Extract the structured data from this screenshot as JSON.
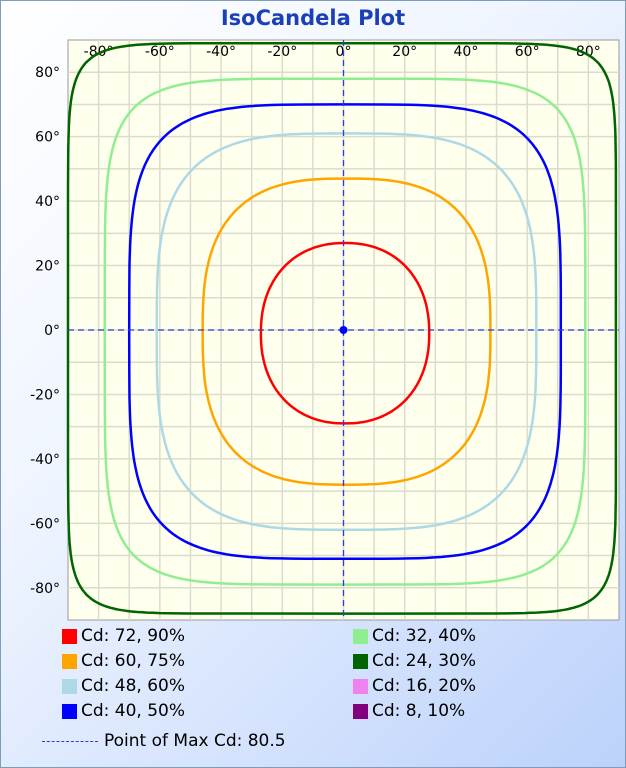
{
  "chart_data": {
    "type": "contour",
    "title": "IsoCandela Plot",
    "x_ticks": [
      "-80°",
      "-60°",
      "-40°",
      "-20°",
      "0°",
      "20°",
      "40°",
      "60°",
      "80°"
    ],
    "y_ticks": [
      "80°",
      "60°",
      "40°",
      "20°",
      "0°",
      "-20°",
      "-40°",
      "-60°",
      "-80°"
    ],
    "xlim": [
      -90,
      90
    ],
    "ylim": [
      -90,
      90
    ],
    "grid": true,
    "plot_background": "#ffffee",
    "max_point": {
      "x": 0,
      "y": 0,
      "label": "Point of Max Cd: 80.5"
    },
    "contours": [
      {
        "label": "Cd: 72, 90%",
        "color": "#ff0000",
        "extent": {
          "left": -27,
          "right": 28,
          "top": 27,
          "bottom": -29
        },
        "shape": 2.2
      },
      {
        "label": "Cd: 60, 75%",
        "color": "#ffa500",
        "extent": {
          "left": -46,
          "right": 48,
          "top": 47,
          "bottom": -48
        },
        "shape": 2.8
      },
      {
        "label": "Cd: 48, 60%",
        "color": "#add8e6",
        "extent": {
          "left": -61,
          "right": 63,
          "top": 61,
          "bottom": -62
        },
        "shape": 3.4
      },
      {
        "label": "Cd: 40, 50%",
        "color": "#0000ff",
        "extent": {
          "left": -70,
          "right": 71,
          "top": 70,
          "bottom": -71
        },
        "shape": 4.2
      },
      {
        "label": "Cd: 32, 40%",
        "color": "#90ee90",
        "extent": {
          "left": -78,
          "right": 79,
          "top": 78,
          "bottom": -79
        },
        "shape": 5.5
      },
      {
        "label": "Cd: 24, 30%",
        "color": "#006400",
        "extent": {
          "left": -90,
          "right": 89,
          "top": 89,
          "bottom": -88
        },
        "shape": 10
      }
    ],
    "legend": [
      {
        "label": "Cd: 72, 90%",
        "color": "#ff0000"
      },
      {
        "label": "Cd: 60, 75%",
        "color": "#ffa500"
      },
      {
        "label": "Cd: 48, 60%",
        "color": "#add8e6"
      },
      {
        "label": "Cd: 40, 50%",
        "color": "#0000ff"
      },
      {
        "label": "Cd: 32, 40%",
        "color": "#90ee90"
      },
      {
        "label": "Cd: 24, 30%",
        "color": "#006400"
      },
      {
        "label": "Cd: 16, 20%",
        "color": "#ee82ee"
      },
      {
        "label": "Cd: 8, 10%",
        "color": "#800080"
      }
    ],
    "legend_placement": "bottom"
  }
}
